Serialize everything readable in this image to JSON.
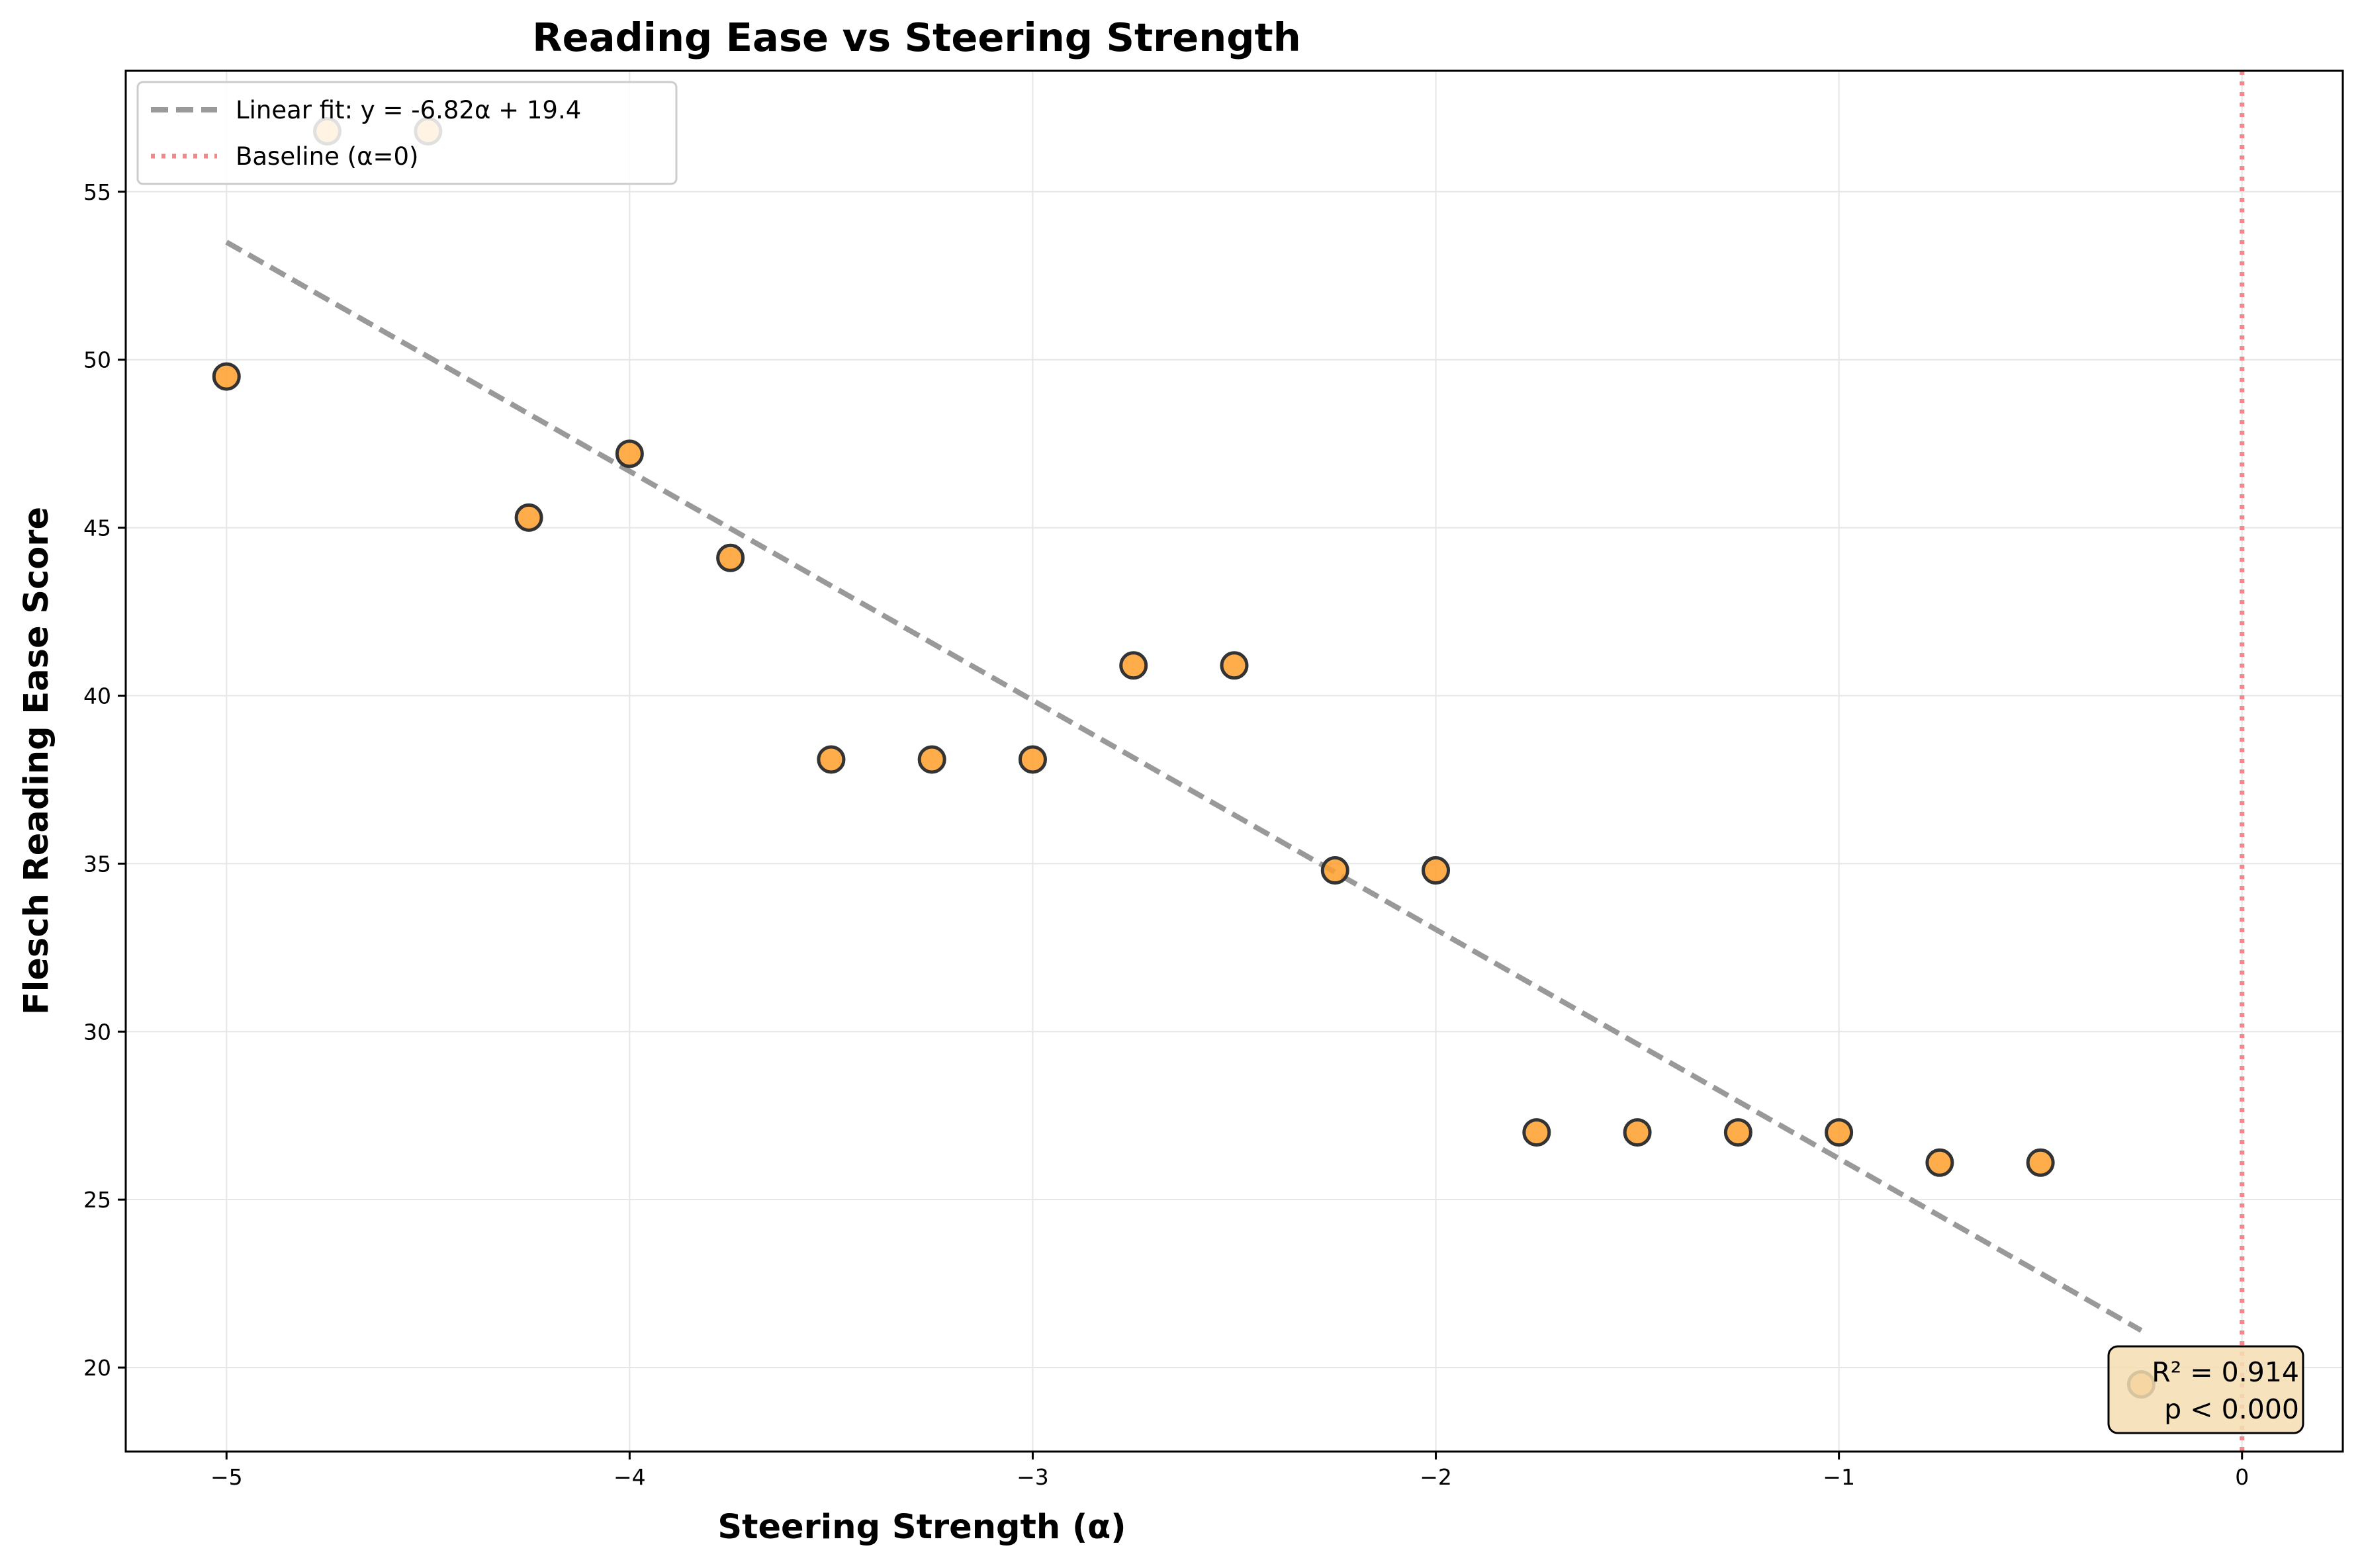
{
  "chart_data": {
    "type": "scatter",
    "title": "Reading Ease vs Steering Strength",
    "xlabel": "Steering Strength (α)",
    "ylabel": "Flesch Reading Ease Score",
    "xlim": [
      -5.25,
      0.25
    ],
    "ylim": [
      17.5,
      58.6
    ],
    "xticks": [
      -5,
      -4,
      -3,
      -2,
      -1,
      0
    ],
    "xtick_labels": [
      "−5",
      "−4",
      "−3",
      "−2",
      "−1",
      "0"
    ],
    "yticks": [
      20,
      25,
      30,
      35,
      40,
      45,
      50,
      55
    ],
    "ytick_labels": [
      "20",
      "25",
      "30",
      "35",
      "40",
      "45",
      "50",
      "55"
    ],
    "grid": true,
    "legend_position": "top-left",
    "points": {
      "color": "#ff9e2c",
      "edge_color": "#333333",
      "x": [
        -5.0,
        -4.75,
        -4.5,
        -4.25,
        -4.0,
        -3.75,
        -3.5,
        -3.25,
        -3.0,
        -2.75,
        -2.5,
        -2.25,
        -2.0,
        -1.75,
        -1.5,
        -1.25,
        -1.0,
        -0.75,
        -0.5,
        -0.25
      ],
      "y": [
        49.5,
        56.8,
        56.8,
        45.3,
        47.2,
        44.1,
        38.1,
        38.1,
        38.1,
        40.9,
        40.9,
        34.8,
        34.8,
        27.0,
        27.0,
        27.0,
        27.0,
        26.1,
        26.1,
        19.5
      ]
    },
    "fit_line": {
      "label": "Linear fit: y = -6.82α + 19.4",
      "slope": -6.82,
      "intercept": 19.4,
      "x_range": [
        -5.0,
        -0.25
      ],
      "color": "#999999"
    },
    "baseline": {
      "label": "Baseline (α=0)",
      "x": 0,
      "color": "#f08a8a"
    },
    "annotation": {
      "lines": [
        "R² = 0.914",
        "p < 0.000"
      ],
      "background": "#f5deb3"
    }
  }
}
